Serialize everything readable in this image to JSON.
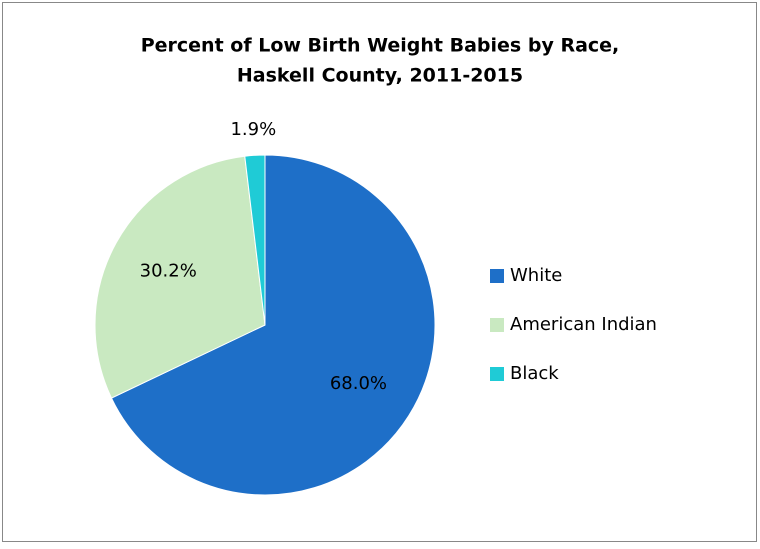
{
  "chart_data": {
    "type": "pie",
    "title": [
      "Percent of Low Birth Weight Babies by Race,",
      "Haskell County, 2011-2015"
    ],
    "categories": [
      "White",
      "American Indian",
      "Black"
    ],
    "values": [
      68.0,
      30.2,
      1.9
    ],
    "value_labels": [
      "68.0%",
      "30.2%",
      "1.9%"
    ],
    "colors": [
      "#1e6fc8",
      "#c9e9c1",
      "#1fcbd6"
    ],
    "legend": "right"
  }
}
